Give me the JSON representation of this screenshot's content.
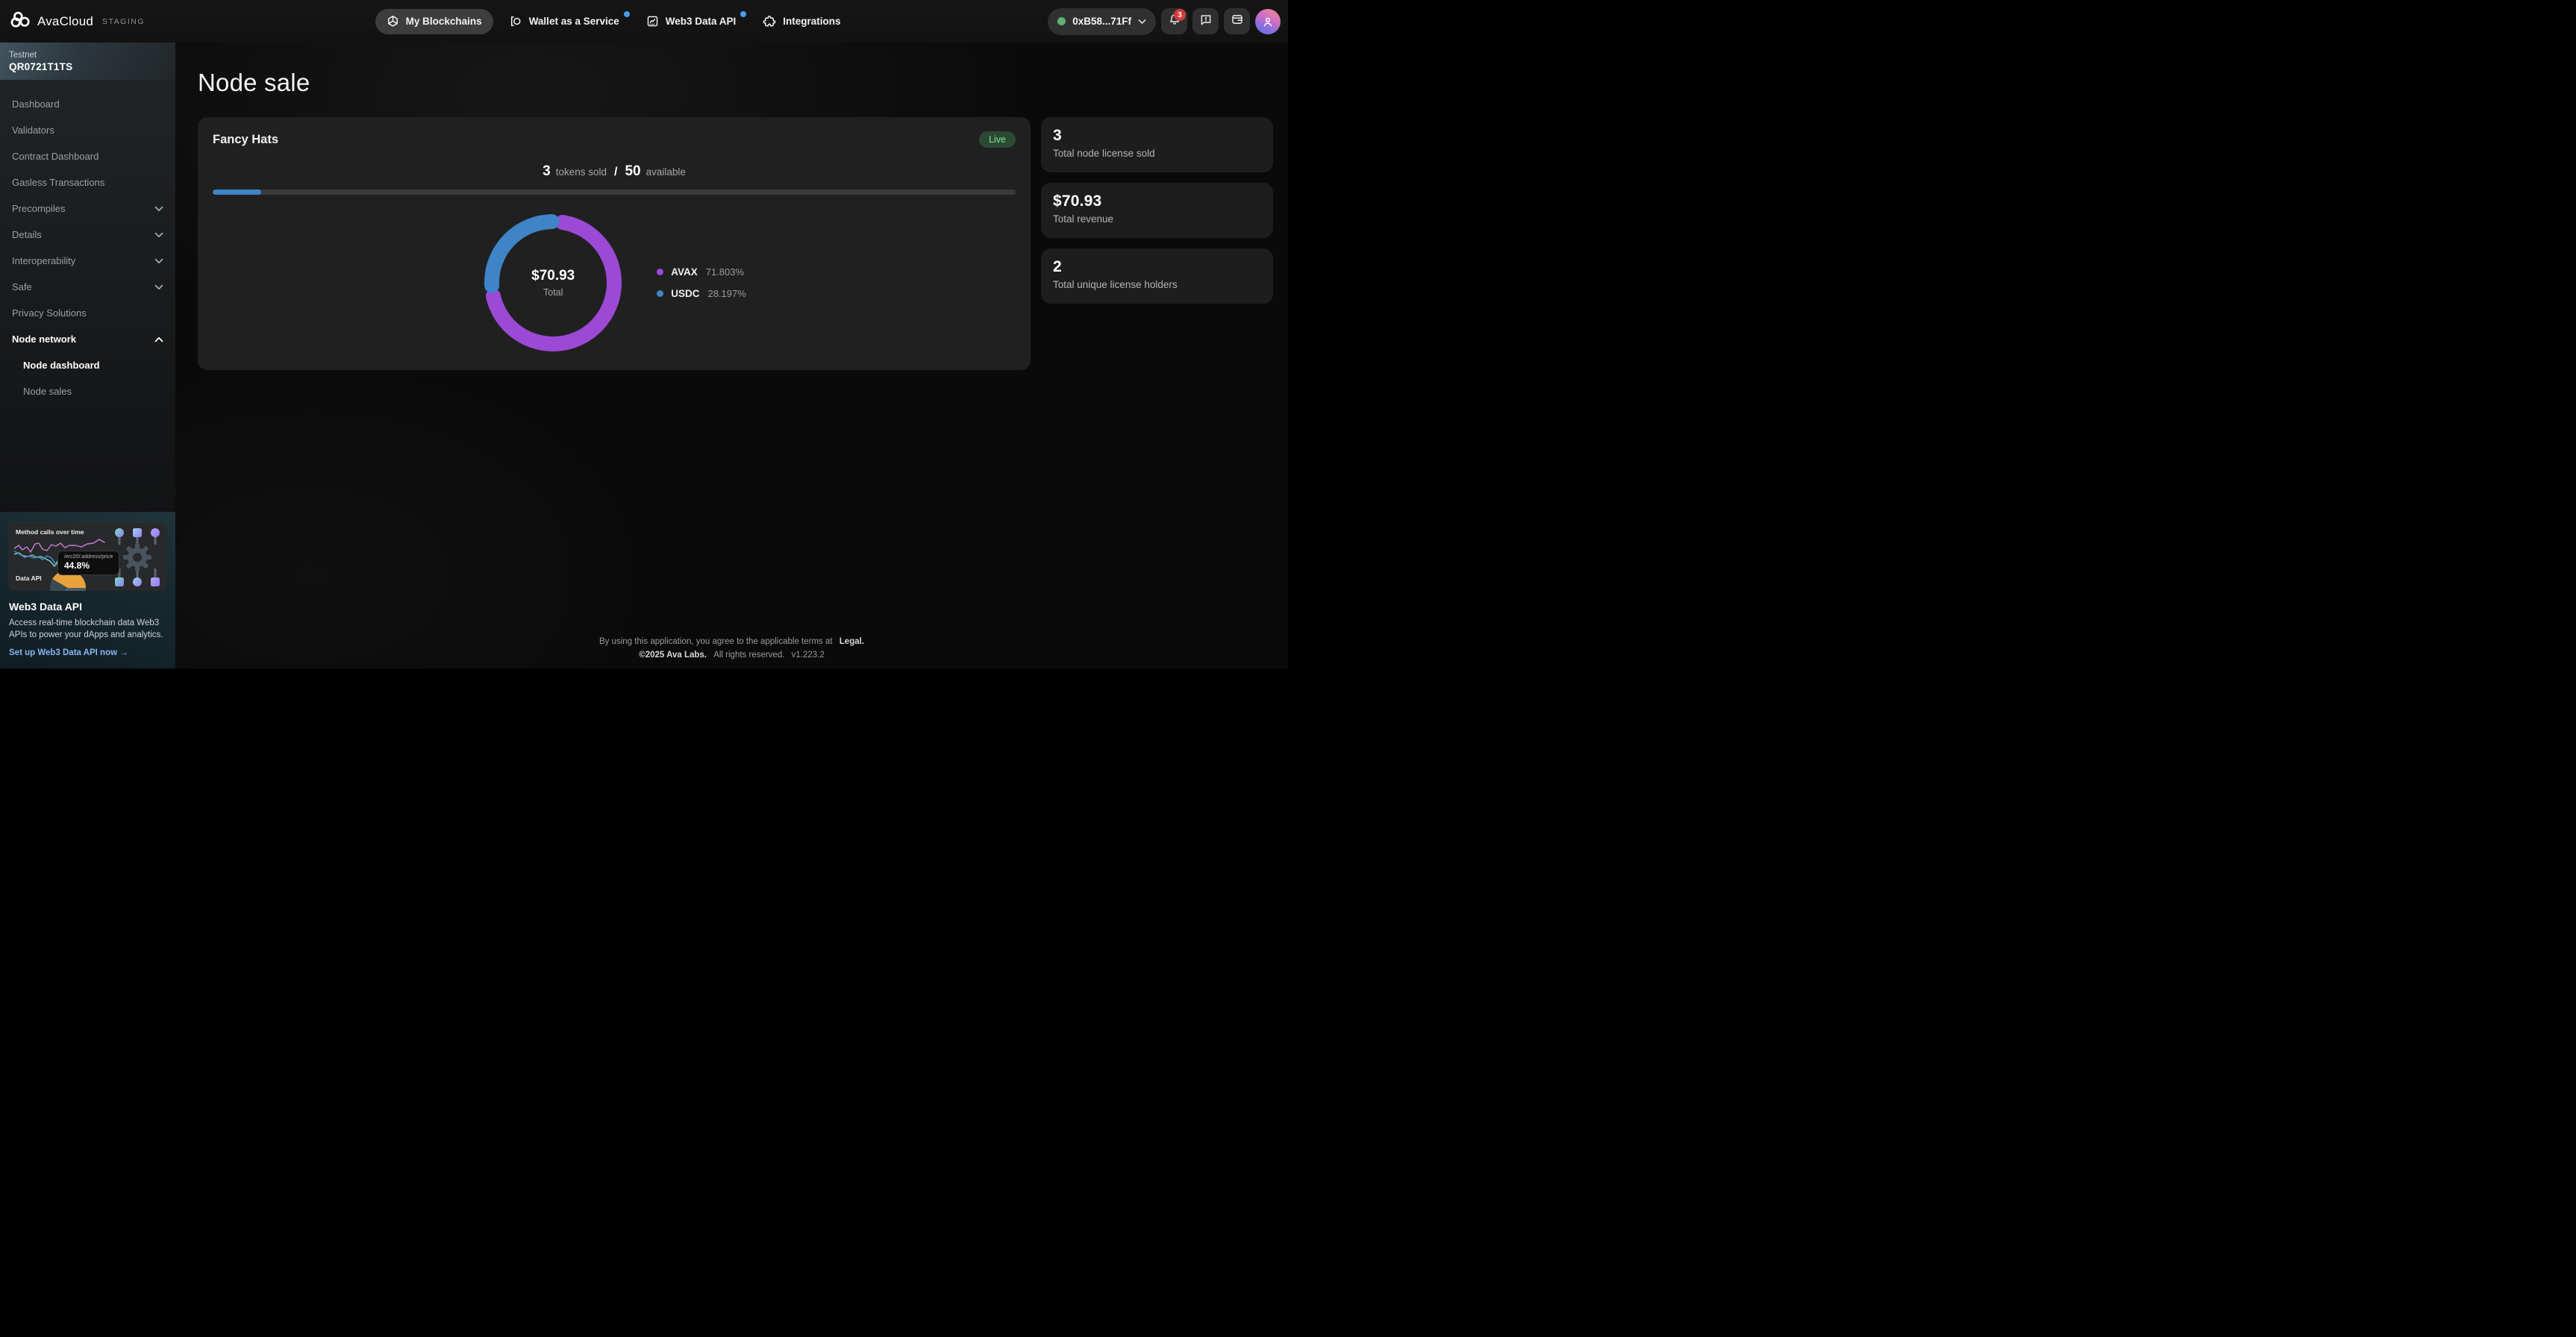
{
  "topbar": {
    "brand": "AvaCloud",
    "env_label": "STAGING",
    "nav": [
      {
        "label": "My Blockchains",
        "active": true,
        "has_dot": false
      },
      {
        "label": "Wallet as a Service",
        "active": false,
        "has_dot": true
      },
      {
        "label": "Web3 Data API",
        "active": false,
        "has_dot": true
      },
      {
        "label": "Integrations",
        "active": false,
        "has_dot": false
      }
    ],
    "wallet": {
      "address": "0xB58...71Ff"
    },
    "notifications_badge": "3"
  },
  "sidebar": {
    "network_label": "Testnet",
    "network_id": "QR0721T1TS",
    "items": [
      {
        "label": "Dashboard"
      },
      {
        "label": "Validators"
      },
      {
        "label": "Contract Dashboard"
      },
      {
        "label": "Gasless Transactions"
      },
      {
        "label": "Precompiles",
        "chevron": "down"
      },
      {
        "label": "Details",
        "chevron": "down"
      },
      {
        "label": "Interoperability",
        "chevron": "down"
      },
      {
        "label": "Safe",
        "chevron": "down"
      },
      {
        "label": "Privacy Solutions"
      },
      {
        "label": "Node network",
        "chevron": "up",
        "active": true,
        "children": [
          {
            "label": "Node dashboard",
            "active": true
          },
          {
            "label": "Node sales"
          }
        ]
      }
    ],
    "promo": {
      "mini_chart_title": "Method calls over time",
      "tooltip_endpoint": "/erc20/:address/price",
      "tooltip_value": "44.8%",
      "mini_chart_label": "Data API",
      "title": "Web3 Data API",
      "description": "Access real-time blockchain data Web3 APIs to power your dApps and analytics.",
      "cta_label": "Set up Web3 Data API now →"
    }
  },
  "main": {
    "page_title": "Node sale",
    "sale_card": {
      "name": "Fancy Hats",
      "status_badge": "Live",
      "sold_value": "3",
      "sold_label": "tokens sold",
      "separator": "/",
      "available_value": "50",
      "available_label": "available",
      "progress_pct": 6
    },
    "stats": [
      {
        "value": "3",
        "label": "Total node license sold"
      },
      {
        "value": "$70.93",
        "label": "Total revenue"
      },
      {
        "value": "2",
        "label": "Total unique license holders"
      }
    ]
  },
  "chart_data": {
    "type": "pie",
    "center_value": "$70.93",
    "center_label": "Total",
    "series": [
      {
        "name": "AVAX",
        "value": 71.803,
        "display": "71.803%",
        "color": "#9c49d6"
      },
      {
        "name": "USDC",
        "value": 28.197,
        "display": "28.197%",
        "color": "#3e84c6"
      }
    ],
    "legend_position": "right"
  },
  "footer": {
    "terms_prefix": "By using this application, you agree to the applicable terms at",
    "legal_label": "Legal.",
    "copyright": "©2025 Ava Labs.",
    "rights": "All rights reserved.",
    "version": "v1.223.2"
  },
  "colors": {
    "accent_blue": "#3e84c6",
    "avax_purple": "#9c49d6",
    "live_green": "#88dd96",
    "badge_red": "#d43c3c",
    "link_blue": "#8ab6f0"
  }
}
